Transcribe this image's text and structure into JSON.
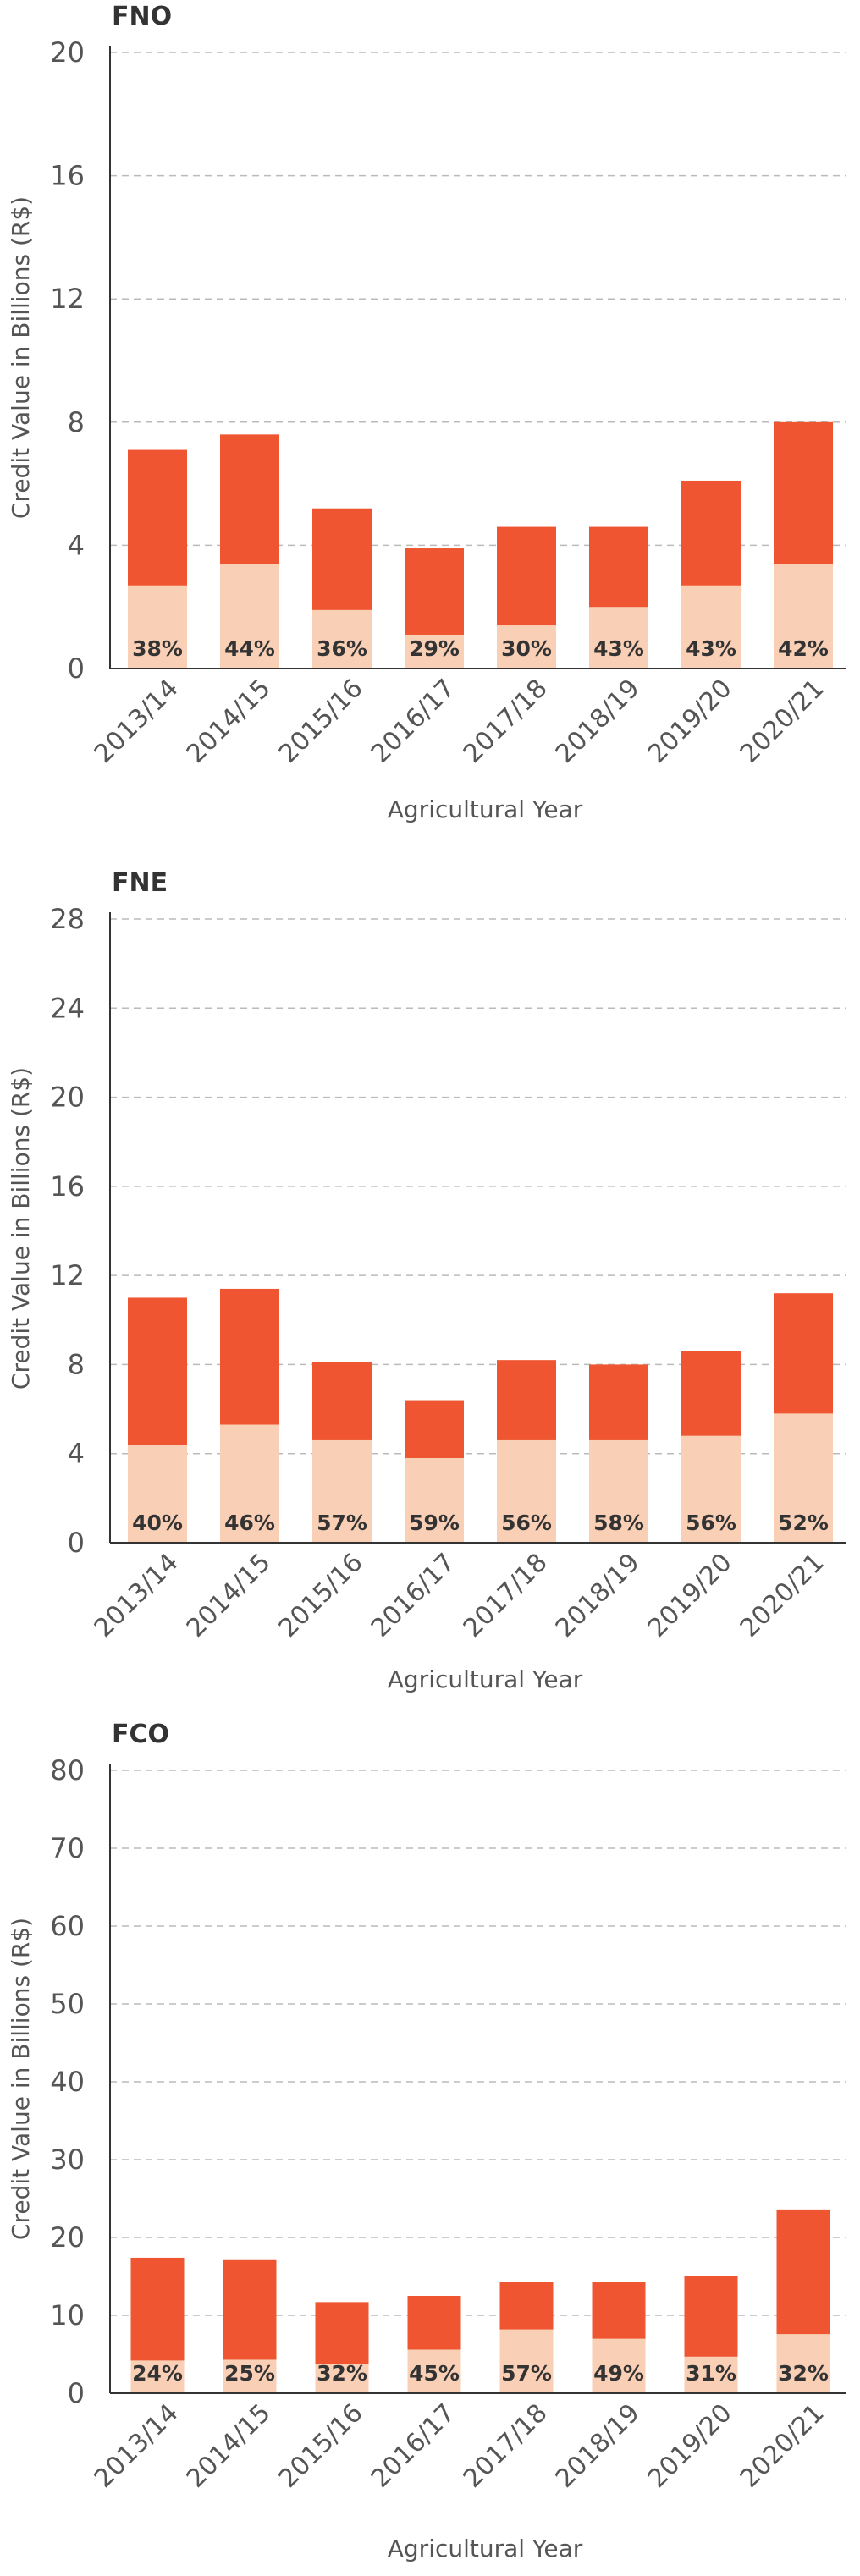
{
  "colors": {
    "total": "#ee5530",
    "share": "#f9cfb6",
    "grid": "#bbbbbb",
    "axis": "#333333",
    "text": "#555555"
  },
  "chart_data": [
    {
      "type": "bar",
      "title": "FNO",
      "xlabel": "Agricultural Year",
      "ylabel": "Credit Value in Billions (R$)",
      "categories": [
        "2013/14",
        "2014/15",
        "2015/16",
        "2016/17",
        "2017/18",
        "2018/19",
        "2019/20",
        "2020/21"
      ],
      "ylim": [
        0,
        20
      ],
      "yticks": [
        0,
        4,
        8,
        12,
        16,
        20
      ],
      "grid": true,
      "series": [
        {
          "values": [
            7.1,
            7.6,
            5.2,
            3.9,
            4.6,
            4.6,
            6.1,
            8.0
          ]
        },
        {
          "values": [
            2.7,
            3.4,
            1.9,
            1.1,
            1.4,
            2.0,
            2.7,
            3.4
          ]
        }
      ],
      "labels": [
        "38%",
        "44%",
        "36%",
        "29%",
        "30%",
        "43%",
        "43%",
        "42%"
      ]
    },
    {
      "type": "bar",
      "title": "FNE",
      "xlabel": "Agricultural Year",
      "ylabel": "Credit Value in Billions (R$)",
      "categories": [
        "2013/14",
        "2014/15",
        "2015/16",
        "2016/17",
        "2017/18",
        "2018/19",
        "2019/20",
        "2020/21"
      ],
      "ylim": [
        0,
        28
      ],
      "yticks": [
        0,
        4,
        8,
        12,
        16,
        20,
        24,
        28
      ],
      "grid": true,
      "series": [
        {
          "values": [
            11.0,
            11.4,
            8.1,
            6.4,
            8.2,
            8.0,
            8.6,
            11.2
          ]
        },
        {
          "values": [
            4.4,
            5.3,
            4.6,
            3.8,
            4.6,
            4.6,
            4.8,
            5.8
          ]
        }
      ],
      "labels": [
        "40%",
        "46%",
        "57%",
        "59%",
        "56%",
        "58%",
        "56%",
        "52%"
      ]
    },
    {
      "type": "bar",
      "title": "FCO",
      "xlabel": "Agricultural Year",
      "ylabel": "Credit Value in Billions (R$)",
      "categories": [
        "2013/14",
        "2014/15",
        "2015/16",
        "2016/17",
        "2017/18",
        "2018/19",
        "2019/20",
        "2020/21"
      ],
      "ylim": [
        0,
        80
      ],
      "yticks": [
        0,
        10,
        20,
        30,
        40,
        50,
        60,
        70,
        80
      ],
      "grid": true,
      "series": [
        {
          "values": [
            17.4,
            17.2,
            11.7,
            12.5,
            14.3,
            14.3,
            15.1,
            23.6
          ]
        },
        {
          "values": [
            4.2,
            4.3,
            3.7,
            5.6,
            8.2,
            7.0,
            4.7,
            7.6
          ]
        }
      ],
      "labels": [
        "24%",
        "25%",
        "32%",
        "45%",
        "57%",
        "49%",
        "31%",
        "32%"
      ]
    }
  ]
}
